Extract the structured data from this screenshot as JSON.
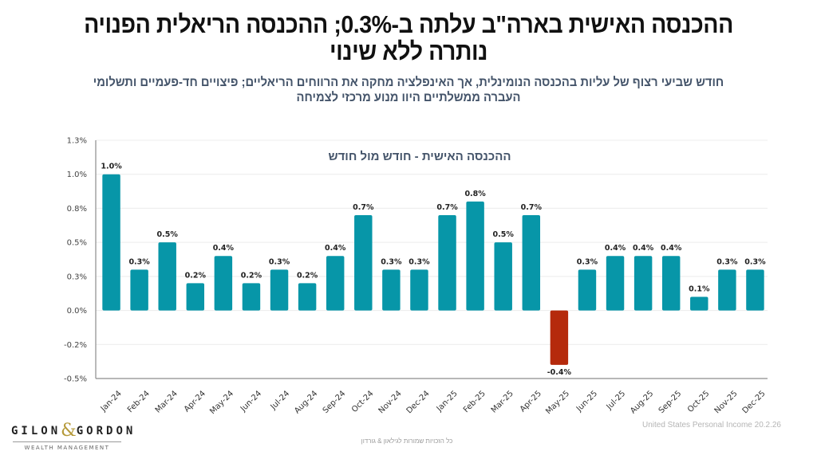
{
  "header": {
    "title_line1": "ההכנסה האישית בארה\"ב עלתה ב-0.3%; ההכנסה הריאלית הפנויה",
    "title_line2": "נותרה ללא שינוי",
    "subtitle_line1": "חודש שביעי רצוף של עליות בהכנסה הנומינלית, אך האינפלציה מחקה את הרווחים הריאליים; פיצויים חד-פעמיים ותשלומי",
    "subtitle_line2": "העברה ממשלתיים היוו מנוע מרכזי לצמיחה"
  },
  "chart_data": {
    "type": "bar",
    "title": "ההכנסה האישית - חודש מול חודש",
    "xlabel": "",
    "ylabel": "",
    "ylim": [
      -0.5,
      1.25
    ],
    "yticks": [
      -0.5,
      -0.25,
      0.0,
      0.25,
      0.5,
      0.75,
      1.0,
      1.25
    ],
    "ytick_labels": [
      "-0.5%",
      "-0.2%",
      "0.0%",
      "0.3%",
      "0.5%",
      "0.8%",
      "1.0%",
      "1.3%"
    ],
    "grid": true,
    "legend": "none",
    "categories": [
      "Jan-24",
      "Feb-24",
      "Mar-24",
      "Apr-24",
      "May-24",
      "Jun-24",
      "Jul-24",
      "Aug-24",
      "Sep-24",
      "Oct-24",
      "Nov-24",
      "Dec-24",
      "Jan-25",
      "Feb-25",
      "Mar-25",
      "Apr-25",
      "May-25",
      "Jun-25",
      "Jul-25",
      "Aug-25",
      "Sep-25",
      "Oct-25",
      "Nov-25",
      "Dec-25"
    ],
    "values": [
      1.0,
      0.3,
      0.5,
      0.2,
      0.4,
      0.2,
      0.3,
      0.2,
      0.4,
      0.7,
      0.3,
      0.3,
      0.7,
      0.8,
      0.5,
      0.7,
      -0.4,
      0.3,
      0.4,
      0.4,
      0.4,
      0.1,
      0.3,
      0.3
    ],
    "data_labels": [
      "1.0%",
      "0.3%",
      "0.5%",
      "0.2%",
      "0.4%",
      "0.2%",
      "0.3%",
      "0.2%",
      "0.4%",
      "0.7%",
      "0.3%",
      "0.3%",
      "0.7%",
      "0.8%",
      "0.5%",
      "0.7%",
      "-0.4%",
      "0.3%",
      "0.4%",
      "0.4%",
      "0.4%",
      "0.1%",
      "0.3%",
      "0.3%"
    ],
    "colors": {
      "positive": "#0796a8",
      "negative": "#b52a0c"
    }
  },
  "source": "United States Personal Income  20.2.26",
  "footer": "כל הזכויות שמורות לגילאון & גורדון",
  "logo": {
    "left": "GILON",
    "amp": "&",
    "right": "GORDON",
    "sub": "WEALTH MANAGEMENT"
  }
}
